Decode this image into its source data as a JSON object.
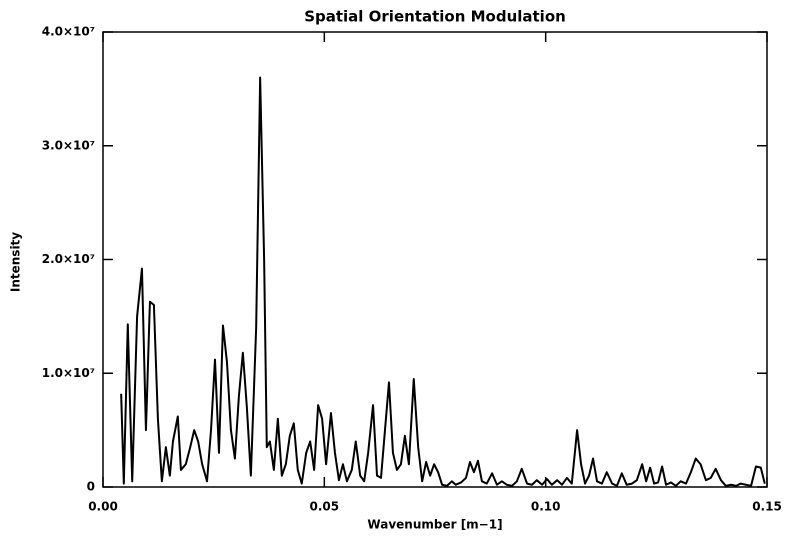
{
  "chart_data": {
    "type": "line",
    "title": "Spatial Orientation Modulation",
    "x_label": "Wavenumber [m−1]",
    "y_label": "Intensity",
    "xlim": [
      0,
      0.15
    ],
    "ylim": [
      0,
      40000000
    ],
    "xticks": [
      {
        "value": 0,
        "label": "0.00"
      },
      0.05,
      {
        "value": 0.1,
        "label": "0.10"
      },
      0.15
    ],
    "yticks": [
      {
        "value": 0,
        "label": "0"
      },
      {
        "value": 10000000,
        "label": "1.0×10⁷"
      },
      {
        "value": 20000000,
        "label": "2.0×10⁷"
      },
      {
        "value": 30000000,
        "label": "3.0×10⁷"
      },
      {
        "value": 40000000,
        "label": "4.0×10⁷"
      }
    ],
    "x": [
      0.0041,
      0.0047,
      0.0056,
      0.0066,
      0.0077,
      0.0088,
      0.0097,
      0.0106,
      0.0115,
      0.0124,
      0.0133,
      0.0142,
      0.0151,
      0.0158,
      0.0169,
      0.0176,
      0.0187,
      0.0197,
      0.0206,
      0.0215,
      0.0224,
      0.0235,
      0.0244,
      0.0253,
      0.0262,
      0.0271,
      0.028,
      0.0289,
      0.0298,
      0.0307,
      0.0316,
      0.0325,
      0.0334,
      0.0346,
      0.0355,
      0.0364,
      0.037,
      0.0377,
      0.0386,
      0.0395,
      0.0404,
      0.0413,
      0.0422,
      0.0431,
      0.044,
      0.0449,
      0.0459,
      0.0468,
      0.0477,
      0.0486,
      0.0495,
      0.0504,
      0.0515,
      0.0524,
      0.0533,
      0.0542,
      0.0551,
      0.0562,
      0.0571,
      0.0581,
      0.059,
      0.0599,
      0.061,
      0.0619,
      0.0628,
      0.0637,
      0.0646,
      0.0655,
      0.0664,
      0.0673,
      0.0682,
      0.0691,
      0.0702,
      0.0712,
      0.0721,
      0.073,
      0.0739,
      0.0748,
      0.0757,
      0.0766,
      0.0777,
      0.0788,
      0.0797,
      0.0809,
      0.082,
      0.0829,
      0.0838,
      0.0847,
      0.0856,
      0.0867,
      0.0879,
      0.089,
      0.0901,
      0.0912,
      0.0924,
      0.0935,
      0.0946,
      0.0958,
      0.0969,
      0.098,
      0.0992,
      0.1003,
      0.1014,
      0.1026,
      0.1037,
      0.1048,
      0.1059,
      0.1071,
      0.108,
      0.1089,
      0.1098,
      0.1107,
      0.1116,
      0.1127,
      0.1138,
      0.115,
      0.1161,
      0.1172,
      0.1183,
      0.1195,
      0.1206,
      0.1218,
      0.1227,
      0.1236,
      0.1245,
      0.1254,
      0.1263,
      0.1272,
      0.1283,
      0.1294,
      0.1305,
      0.1317,
      0.1328,
      0.1339,
      0.135,
      0.1362,
      0.1373,
      0.1384,
      0.1396,
      0.1407,
      0.1419,
      0.143,
      0.1441,
      0.1452,
      0.1464,
      0.1475,
      0.1486,
      0.1495
    ],
    "series": [
      {
        "color": "#000000",
        "values": [
          8200000,
          300000,
          14300000,
          500000,
          15000000,
          19200000,
          5000000,
          16300000,
          16000000,
          6000000,
          500000,
          3500000,
          1000000,
          4000000,
          6200000,
          1500000,
          2000000,
          3500000,
          5000000,
          4000000,
          2000000,
          500000,
          5000000,
          11200000,
          3000000,
          14200000,
          11000000,
          5000000,
          2500000,
          8000000,
          11800000,
          7000000,
          1000000,
          14000000,
          36000000,
          20000000,
          3500000,
          4000000,
          1500000,
          6000000,
          1000000,
          2000000,
          4500000,
          5600000,
          1500000,
          300000,
          3000000,
          4000000,
          1500000,
          7200000,
          6000000,
          2000000,
          6500000,
          3000000,
          600000,
          2000000,
          500000,
          1500000,
          4000000,
          1000000,
          500000,
          3000000,
          7200000,
          1000000,
          800000,
          5000000,
          9200000,
          3000000,
          1500000,
          2000000,
          4500000,
          2000000,
          9500000,
          3500000,
          500000,
          2200000,
          1000000,
          2000000,
          1300000,
          200000,
          100000,
          500000,
          200000,
          400000,
          800000,
          2200000,
          1300000,
          2300000,
          500000,
          300000,
          1200000,
          200000,
          500000,
          200000,
          100000,
          500000,
          1600000,
          300000,
          200000,
          600000,
          200000,
          700000,
          200000,
          600000,
          200000,
          800000,
          300000,
          5000000,
          2000000,
          300000,
          1000000,
          2500000,
          500000,
          300000,
          1300000,
          300000,
          100000,
          1200000,
          200000,
          300000,
          600000,
          2000000,
          500000,
          1700000,
          300000,
          400000,
          1800000,
          200000,
          400000,
          100000,
          500000,
          300000,
          1300000,
          2500000,
          2000000,
          600000,
          800000,
          1600000,
          600000,
          100000,
          200000,
          100000,
          300000,
          200000,
          100000,
          1800000,
          1700000,
          300000
        ]
      }
    ]
  }
}
